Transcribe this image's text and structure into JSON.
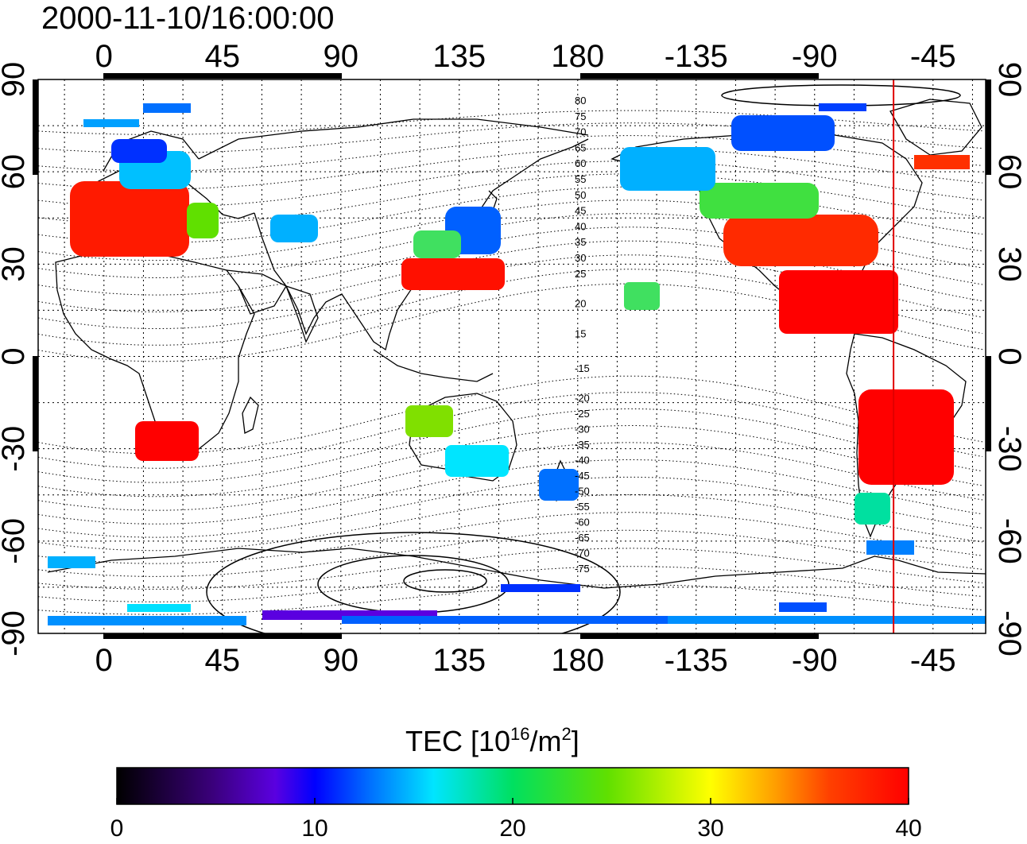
{
  "title": "2000-11-10/16:00:00",
  "map": {
    "lon_ticks_top": [
      "0",
      "45",
      "90",
      "135",
      "180",
      "-135",
      "-90",
      "-45"
    ],
    "lon_ticks_bottom": [
      "0",
      "45",
      "90",
      "135",
      "180",
      "-135",
      "-90",
      "-45"
    ],
    "lat_ticks_left": [
      "90",
      "60",
      "30",
      "0",
      "-30",
      "-60",
      "-90"
    ],
    "lat_ticks_right": [
      "90",
      "60",
      "30",
      "0",
      "-30",
      "-60",
      "-90"
    ],
    "magnetic_lat_labels_north": [
      "80",
      "75",
      "70",
      "65",
      "60",
      "55",
      "50",
      "45",
      "40",
      "35",
      "30",
      "25",
      "20",
      "15"
    ],
    "magnetic_lat_labels_south": [
      "-15",
      "-20",
      "-25",
      "-30",
      "-35",
      "-40",
      "-45",
      "-50",
      "-55",
      "-60",
      "-65",
      "-70",
      "-75"
    ],
    "terminator_longitude": -60,
    "terminator_color": "#e00000",
    "grid": "dotted"
  },
  "colorbar": {
    "title_main": "TEC  [10",
    "title_sup1": "16",
    "title_mid": "/m",
    "title_sup2": "2",
    "title_end": "]",
    "ticks": [
      "0",
      "10",
      "20",
      "30",
      "40"
    ],
    "range": [
      0,
      40
    ],
    "colormap": [
      "#000000",
      "#3a007a",
      "#5a00e0",
      "#0000ff",
      "#0070ff",
      "#00e5ff",
      "#00e060",
      "#60e000",
      "#ffff00",
      "#ffa000",
      "#ff4000",
      "#ff0000"
    ]
  }
}
